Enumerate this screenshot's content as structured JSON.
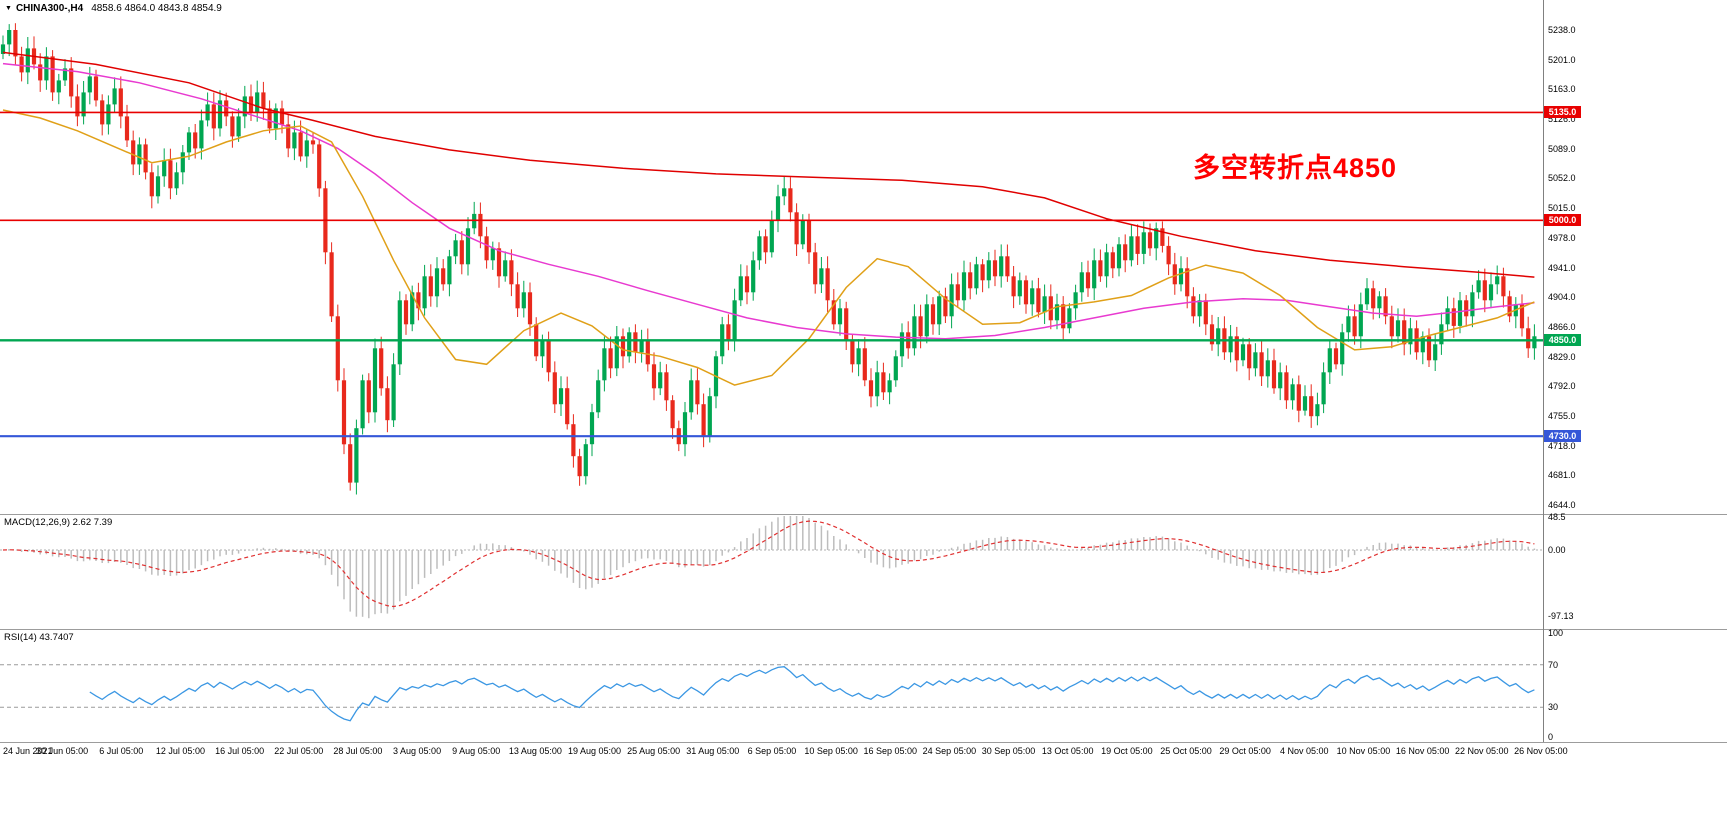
{
  "header": {
    "dropdown_icon": "▼",
    "symbol": "CHINA300-,H4",
    "ohlc": "4858.6 4864.0 4843.8 4854.9"
  },
  "annotation": {
    "text": "多空转折点4850",
    "color": "#ff0000"
  },
  "macd_panel": {
    "label": "MACD(12,26,9) 2.62 7.39",
    "axis": [
      "48.5",
      "0.00",
      "-97.13"
    ]
  },
  "rsi_panel": {
    "label": "RSI(14) 43.7407",
    "axis": [
      "100",
      "70",
      "30",
      "0"
    ],
    "levels": [
      70,
      30
    ]
  },
  "price_axis": {
    "labels": [
      "5238.0",
      "5201.0",
      "5163.0",
      "5126.0",
      "5089.0",
      "5052.0",
      "5015.0",
      "4978.0",
      "4941.0",
      "4904.0",
      "4866.0",
      "4829.0",
      "4792.0",
      "4755.0",
      "4718.0",
      "4681.0",
      "4644.0"
    ]
  },
  "hlines": [
    {
      "price": 5135,
      "label": "5135.0",
      "color": "#e80000",
      "width": 1.6
    },
    {
      "price": 5000,
      "label": "5000.0",
      "color": "#e80000",
      "width": 1.6
    },
    {
      "price": 4850,
      "label": "4850.0",
      "color": "#00a651",
      "width": 2.4
    },
    {
      "price": 4730,
      "label": "4730.0",
      "color": "#3557d8",
      "width": 2.2
    }
  ],
  "time_axis": [
    "24 Jun 2021",
    "30 Jun 05:00",
    "6 Jul 05:00",
    "12 Jul 05:00",
    "16 Jul 05:00",
    "22 Jul 05:00",
    "28 Jul 05:00",
    "3 Aug 05:00",
    "9 Aug 05:00",
    "13 Aug 05:00",
    "19 Aug 05:00",
    "25 Aug 05:00",
    "31 Aug 05:00",
    "6 Sep 05:00",
    "10 Sep 05:00",
    "16 Sep 05:00",
    "24 Sep 05:00",
    "30 Sep 05:00",
    "13 Oct 05:00",
    "19 Oct 05:00",
    "25 Oct 05:00",
    "29 Oct 05:00",
    "4 Nov 05:00",
    "10 Nov 05:00",
    "16 Nov 05:00",
    "22 Nov 05:00",
    "26 Nov 05:00"
  ],
  "colors": {
    "up": "#00a651",
    "down": "#e8291c",
    "ma_red": "#e00000",
    "ma_magenta": "#e83ad0",
    "ma_orange": "#e0a018",
    "macd_hist": "#bdbdbd",
    "macd_signal": "#e03131",
    "rsi_line": "#3b97e3",
    "separator": "#9c9c9c",
    "level_dash": "#9a9a9a"
  },
  "chart_data": {
    "type": "candlestick",
    "symbol": "CHINA300-",
    "timeframe": "H4",
    "current_bar": {
      "open": 4858.6,
      "high": 4864.0,
      "low": 4843.8,
      "close": 4854.9
    },
    "y_range": [
      4644,
      5238
    ],
    "levels": {
      "resistance": [
        5135,
        5000
      ],
      "pivot": 4850,
      "support": 4730
    },
    "closes": [
      5220,
      5238,
      5205,
      5185,
      5215,
      5195,
      5175,
      5205,
      5160,
      5175,
      5190,
      5155,
      5130,
      5160,
      5180,
      5150,
      5120,
      5145,
      5165,
      5130,
      5100,
      5070,
      5095,
      5060,
      5030,
      5055,
      5075,
      5040,
      5060,
      5085,
      5110,
      5090,
      5125,
      5145,
      5115,
      5150,
      5130,
      5105,
      5130,
      5155,
      5135,
      5160,
      5140,
      5115,
      5140,
      5120,
      5090,
      5110,
      5080,
      5100,
      5095,
      5040,
      4960,
      4880,
      4800,
      4720,
      4672,
      4740,
      4800,
      4760,
      4840,
      4790,
      4750,
      4820,
      4900,
      4870,
      4910,
      4890,
      4930,
      4905,
      4940,
      4920,
      4955,
      4975,
      4945,
      4990,
      5008,
      4980,
      4950,
      4965,
      4930,
      4950,
      4920,
      4890,
      4910,
      4870,
      4830,
      4850,
      4810,
      4770,
      4790,
      4745,
      4705,
      4680,
      4720,
      4760,
      4800,
      4840,
      4815,
      4855,
      4830,
      4860,
      4835,
      4850,
      4820,
      4790,
      4810,
      4775,
      4740,
      4720,
      4760,
      4800,
      4770,
      4730,
      4780,
      4830,
      4870,
      4850,
      4900,
      4930,
      4910,
      4950,
      4980,
      4960,
      5000,
      5030,
      5040,
      5010,
      4970,
      5000,
      4960,
      4920,
      4940,
      4900,
      4870,
      4890,
      4850,
      4820,
      4840,
      4800,
      4780,
      4810,
      4785,
      4800,
      4830,
      4860,
      4840,
      4880,
      4855,
      4895,
      4870,
      4905,
      4880,
      4920,
      4900,
      4935,
      4915,
      4945,
      4925,
      4950,
      4930,
      4955,
      4930,
      4905,
      4925,
      4895,
      4915,
      4885,
      4905,
      4875,
      4895,
      4865,
      4890,
      4910,
      4935,
      4915,
      4950,
      4930,
      4960,
      4940,
      4970,
      4950,
      4980,
      4958,
      4985,
      4965,
      4990,
      4968,
      4945,
      4920,
      4940,
      4905,
      4880,
      4900,
      4870,
      4845,
      4865,
      4835,
      4855,
      4825,
      4845,
      4815,
      4835,
      4805,
      4825,
      4790,
      4810,
      4775,
      4795,
      4762,
      4780,
      4755,
      4770,
      4810,
      4840,
      4820,
      4860,
      4880,
      4855,
      4895,
      4915,
      4890,
      4905,
      4880,
      4855,
      4875,
      4845,
      4865,
      4835,
      4855,
      4825,
      4845,
      4870,
      4890,
      4868,
      4900,
      4880,
      4910,
      4925,
      4900,
      4920,
      4930,
      4905,
      4880,
      4895,
      4865,
      4840,
      4855
    ],
    "ma_red": [
      [
        0,
        5210
      ],
      [
        15,
        5195
      ],
      [
        30,
        5172
      ],
      [
        42,
        5140
      ],
      [
        50,
        5125
      ],
      [
        60,
        5105
      ],
      [
        72,
        5088
      ],
      [
        85,
        5075
      ],
      [
        100,
        5065
      ],
      [
        115,
        5058
      ],
      [
        130,
        5054
      ],
      [
        145,
        5050
      ],
      [
        158,
        5042
      ],
      [
        168,
        5028
      ],
      [
        178,
        5002
      ],
      [
        190,
        4980
      ],
      [
        202,
        4962
      ],
      [
        214,
        4950
      ],
      [
        226,
        4942
      ],
      [
        238,
        4935
      ],
      [
        247,
        4929
      ]
    ],
    "ma_magenta": [
      [
        0,
        5196
      ],
      [
        12,
        5186
      ],
      [
        22,
        5172
      ],
      [
        32,
        5152
      ],
      [
        40,
        5132
      ],
      [
        48,
        5112
      ],
      [
        54,
        5090
      ],
      [
        60,
        5058
      ],
      [
        66,
        5022
      ],
      [
        72,
        4990
      ],
      [
        80,
        4962
      ],
      [
        88,
        4945
      ],
      [
        96,
        4930
      ],
      [
        104,
        4912
      ],
      [
        112,
        4895
      ],
      [
        120,
        4878
      ],
      [
        128,
        4866
      ],
      [
        136,
        4858
      ],
      [
        144,
        4854
      ],
      [
        152,
        4852
      ],
      [
        160,
        4856
      ],
      [
        168,
        4866
      ],
      [
        176,
        4878
      ],
      [
        184,
        4890
      ],
      [
        192,
        4898
      ],
      [
        200,
        4902
      ],
      [
        207,
        4900
      ],
      [
        214,
        4892
      ],
      [
        221,
        4884
      ],
      [
        228,
        4880
      ],
      [
        235,
        4886
      ],
      [
        241,
        4892
      ],
      [
        247,
        4897
      ]
    ],
    "ma_orange": [
      [
        0,
        5138
      ],
      [
        6,
        5128
      ],
      [
        12,
        5112
      ],
      [
        18,
        5092
      ],
      [
        24,
        5072
      ],
      [
        30,
        5080
      ],
      [
        36,
        5098
      ],
      [
        42,
        5112
      ],
      [
        48,
        5118
      ],
      [
        53,
        5098
      ],
      [
        58,
        5030
      ],
      [
        63,
        4950
      ],
      [
        68,
        4878
      ],
      [
        73,
        4826
      ],
      [
        78,
        4820
      ],
      [
        84,
        4862
      ],
      [
        90,
        4884
      ],
      [
        95,
        4868
      ],
      [
        100,
        4838
      ],
      [
        106,
        4830
      ],
      [
        112,
        4816
      ],
      [
        118,
        4794
      ],
      [
        124,
        4806
      ],
      [
        130,
        4852
      ],
      [
        136,
        4916
      ],
      [
        141,
        4952
      ],
      [
        146,
        4942
      ],
      [
        152,
        4902
      ],
      [
        158,
        4870
      ],
      [
        164,
        4872
      ],
      [
        170,
        4892
      ],
      [
        176,
        4898
      ],
      [
        182,
        4906
      ],
      [
        188,
        4928
      ],
      [
        194,
        4944
      ],
      [
        200,
        4934
      ],
      [
        206,
        4906
      ],
      [
        212,
        4866
      ],
      [
        218,
        4838
      ],
      [
        224,
        4842
      ],
      [
        230,
        4856
      ],
      [
        236,
        4868
      ],
      [
        241,
        4878
      ],
      [
        247,
        4898
      ]
    ],
    "macd": {
      "fast": 12,
      "slow": 26,
      "signal": 9,
      "current_macd": 2.62,
      "current_signal": 7.39
    },
    "rsi": {
      "period": 14,
      "current": 43.7407
    }
  }
}
